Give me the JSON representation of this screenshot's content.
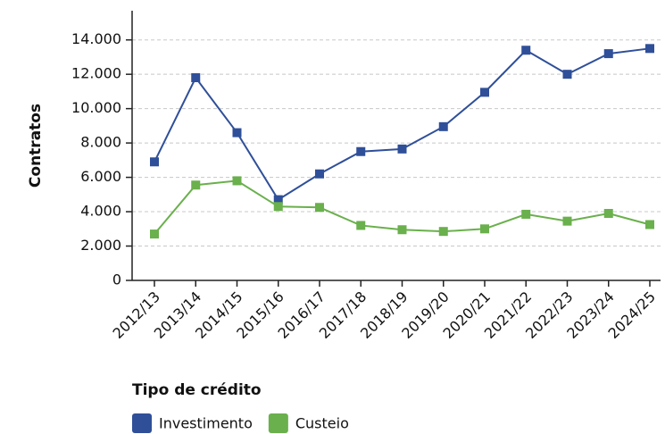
{
  "chart_data": {
    "type": "line",
    "y_label": "Contratos",
    "categories": [
      "2012/13",
      "2013/14",
      "2014/15",
      "2015/16",
      "2016/17",
      "2017/18",
      "2018/19",
      "2019/20",
      "2020/21",
      "2021/22",
      "2022/23",
      "2023/24",
      "2024/25"
    ],
    "series": [
      {
        "name": "Investimento",
        "color": "#2f4f99",
        "values": [
          6900,
          11800,
          8600,
          4700,
          6200,
          7500,
          7650,
          8950,
          10950,
          13400,
          12000,
          13200,
          13500
        ]
      },
      {
        "name": "Custeio",
        "color": "#6ab04c",
        "values": [
          2700,
          5550,
          5800,
          4300,
          4250,
          3200,
          2950,
          2850,
          3000,
          3850,
          3450,
          3900,
          3250
        ]
      }
    ],
    "ylim": [
      0,
      15700
    ],
    "yticks": [
      0,
      {
        "value": 2000,
        "label": "2.000"
      },
      {
        "value": 4000,
        "label": "4.000"
      },
      {
        "value": 6000,
        "label": "6.000"
      },
      {
        "value": 8000,
        "label": "8.000"
      },
      {
        "value": 10000,
        "label": "10.000"
      },
      {
        "value": 12000,
        "label": "12.000"
      },
      {
        "value": 14000,
        "label": "14.000"
      }
    ],
    "grid": true,
    "legend_title": "Tipo de crédito",
    "legend": "bottom-left"
  }
}
